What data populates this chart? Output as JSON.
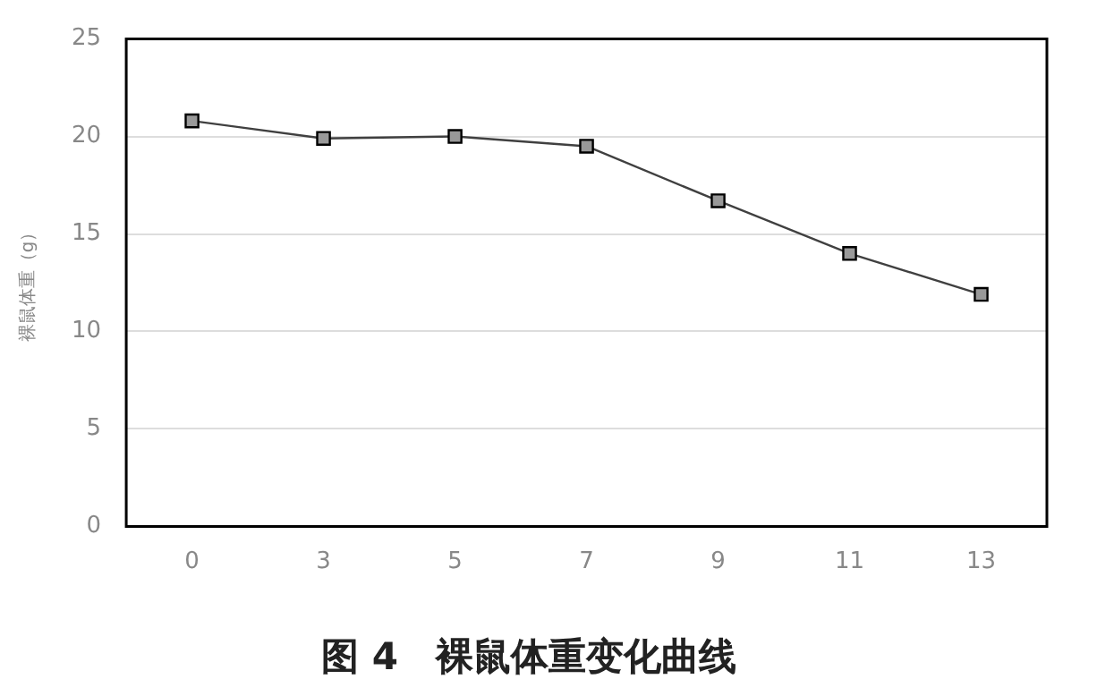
{
  "chart_data": {
    "type": "line",
    "title": "图 4　裸鼠体重变化曲线",
    "ylabel": "裸鼠体重（g）",
    "categories": [
      "0",
      "3",
      "5",
      "7",
      "9",
      "11",
      "13"
    ],
    "series": [
      {
        "color": "#404040",
        "values": [
          20.8,
          19.9,
          20.0,
          19.5,
          16.7,
          14.0,
          11.9
        ]
      }
    ],
    "ylim": [
      0,
      25
    ],
    "yticks": [
      0,
      5,
      10,
      15,
      20,
      25
    ],
    "grid": "y",
    "legend": false,
    "marker": "square",
    "line_style": "solid"
  }
}
